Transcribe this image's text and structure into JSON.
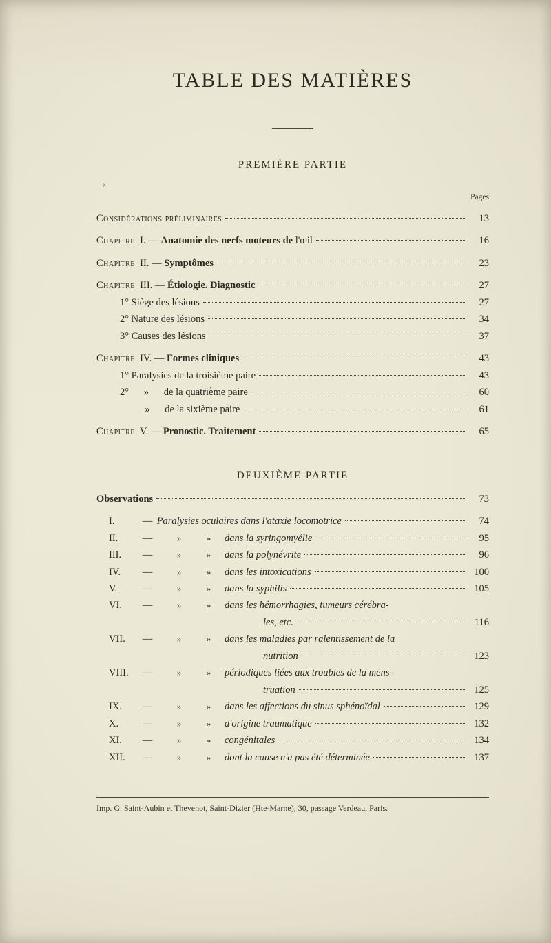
{
  "title": "TABLE DES MATIÈRES",
  "mark": "«",
  "pagesLabel": "Pages",
  "part1": {
    "heading": "PREMIÈRE PARTIE",
    "rows": [
      {
        "indent": 0,
        "pieces": [
          {
            "t": "Considérations préliminaires",
            "cls": "sc"
          }
        ],
        "pg": "13"
      },
      {
        "indent": 0,
        "sp": true,
        "pieces": [
          {
            "t": "Chapitre",
            "cls": "sc"
          },
          {
            "t": "  I. — "
          },
          {
            "t": "Anatomie des nerfs moteurs de ",
            "cls": "bold"
          },
          {
            "t": "l'œil"
          }
        ],
        "pg": "16"
      },
      {
        "indent": 0,
        "sp": true,
        "pieces": [
          {
            "t": "Chapitre",
            "cls": "sc"
          },
          {
            "t": "  II. — "
          },
          {
            "t": "Symptômes",
            "cls": "bold"
          }
        ],
        "pg": "23"
      },
      {
        "indent": 0,
        "sp": true,
        "pieces": [
          {
            "t": "Chapitre",
            "cls": "sc"
          },
          {
            "t": "  III. — "
          },
          {
            "t": "Étiologie. Diagnostic",
            "cls": "bold"
          }
        ],
        "pg": "27"
      },
      {
        "indent": 1,
        "pieces": [
          {
            "t": "1° Siège des lésions"
          }
        ],
        "pg": "27"
      },
      {
        "indent": 1,
        "pieces": [
          {
            "t": "2° Nature des lésions"
          }
        ],
        "pg": "34"
      },
      {
        "indent": 1,
        "pieces": [
          {
            "t": "3° Causes des lésions"
          }
        ],
        "pg": "37"
      },
      {
        "indent": 0,
        "sp": true,
        "pieces": [
          {
            "t": "Chapitre",
            "cls": "sc"
          },
          {
            "t": "  IV. — "
          },
          {
            "t": "Formes cliniques",
            "cls": "bold"
          }
        ],
        "pg": "43"
      },
      {
        "indent": 1,
        "pieces": [
          {
            "t": "1° Paralysies de la troisième paire"
          }
        ],
        "pg": "43"
      },
      {
        "indent": 1,
        "pieces": [
          {
            "t": "2°      »      de la quatrième paire"
          }
        ],
        "pg": "60"
      },
      {
        "indent": 1,
        "pieces": [
          {
            "t": "          »      de la sixième paire"
          }
        ],
        "pg": "61"
      },
      {
        "indent": 0,
        "sp": true,
        "pieces": [
          {
            "t": "Chapitre",
            "cls": "sc"
          },
          {
            "t": "  V. — "
          },
          {
            "t": "Pronostic. Traitement",
            "cls": "bold"
          }
        ],
        "pg": "65"
      }
    ]
  },
  "part2": {
    "heading": "DEUXIÈME PARTIE",
    "obsLabel": "Observations",
    "obsPg": "73",
    "rows": [
      {
        "num": "I.",
        "first": true,
        "text": "Paralysies oculaires dans l'ataxie locomotrice",
        "pg": "74"
      },
      {
        "num": "II.",
        "text": "dans la syringomyélie",
        "pg": "95"
      },
      {
        "num": "III.",
        "text": "dans la polynévrite",
        "pg": "96"
      },
      {
        "num": "IV.",
        "text": "dans les intoxications",
        "pg": "100"
      },
      {
        "num": "V.",
        "text": "dans la syphilis",
        "pg": "105"
      },
      {
        "num": "VI.",
        "text": "dans les hémorrhagies, tumeurs cérébra-",
        "pg": "",
        "nopg": true
      },
      {
        "cont": true,
        "text": "les, etc.",
        "pg": "116"
      },
      {
        "num": "VII.",
        "text": "dans les maladies par ralentissement de la",
        "pg": "",
        "nopg": true
      },
      {
        "cont": true,
        "text": "nutrition",
        "pg": "123"
      },
      {
        "num": "VIII.",
        "text": "périodiques liées aux troubles de la mens-",
        "pg": "",
        "nopg": true
      },
      {
        "cont": true,
        "text": "truation",
        "pg": "125"
      },
      {
        "num": "IX.",
        "text": "dans les affections du sinus sphénoïdal",
        "pg": "129"
      },
      {
        "num": "X.",
        "text": "d'origine traumatique",
        "pg": "132"
      },
      {
        "num": "XI.",
        "text": "congénitales",
        "pg": "134"
      },
      {
        "num": "XII.",
        "text": "dont la cause n'a pas été déterminée",
        "pg": "137"
      }
    ]
  },
  "footnote": "Imp. G. Saint-Aubin et Thevenot, Saint-Dizier (Hte-Marne), 30, passage Verdeau, Paris.",
  "colors": {
    "paper": "#ece9d7",
    "ink": "#2d2a22",
    "faintInk": "#3c392e",
    "rule": "#4a463a"
  },
  "typography": {
    "title_pt": 30,
    "body_pt": 14.5,
    "heading_pt": 15,
    "footnote_pt": 12
  }
}
